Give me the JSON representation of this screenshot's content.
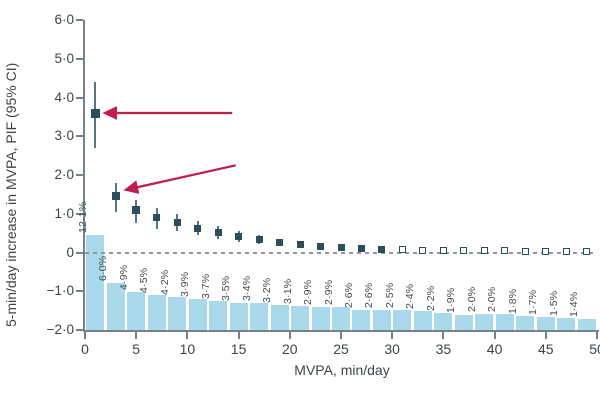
{
  "figure": {
    "y_axis": {
      "label": "5-min/day increase in MVPA, PIF (95% CI)",
      "min": -2,
      "max": 6,
      "ticks": [
        6,
        5,
        4,
        3,
        2,
        1,
        0,
        -1,
        -2
      ],
      "tick_labels": [
        "6·0",
        "5·0",
        "4·0",
        "3·0",
        "2·0",
        "1·0",
        "0",
        "−1·0",
        "−2·0"
      ]
    },
    "x_axis": {
      "label": "MVPA, min/day",
      "min": 0,
      "max": 50,
      "ticks": [
        0,
        5,
        10,
        15,
        20,
        25,
        30,
        35,
        40,
        45,
        50
      ]
    }
  },
  "chart_data": {
    "type": "bar",
    "subtype": "histogram-bars-with-point-estimates-and-95CI",
    "title": "",
    "grid": false,
    "legend": "none",
    "zero_reference_line": {
      "y": 0,
      "style": "dashed",
      "color": "#8f989c"
    },
    "bar_color": "#a9d9ea",
    "marker_color": "#2c4d5a",
    "ci_color": "#597683",
    "bar_baseline": -2,
    "bar_units_per_percent": 0.2025,
    "bins": [
      {
        "mvpa": 1,
        "bar_pct": 12.1,
        "bar_label": "12·1%",
        "pif": 3.6,
        "ci_low": 2.7,
        "ci_high": 4.4,
        "marker": "filled"
      },
      {
        "mvpa": 3,
        "bar_pct": 6.0,
        "bar_label": "6·0%",
        "pif": 1.45,
        "ci_low": 1.05,
        "ci_high": 1.8,
        "marker": "filled"
      },
      {
        "mvpa": 5,
        "bar_pct": 4.9,
        "bar_label": "4·9%",
        "pif": 1.1,
        "ci_low": 0.75,
        "ci_high": 1.36,
        "marker": "filled"
      },
      {
        "mvpa": 7,
        "bar_pct": 4.5,
        "bar_label": "4·5%",
        "pif": 0.9,
        "ci_low": 0.61,
        "ci_high": 1.15,
        "marker": "filled"
      },
      {
        "mvpa": 9,
        "bar_pct": 4.2,
        "bar_label": "4·2%",
        "pif": 0.77,
        "ci_low": 0.55,
        "ci_high": 1.0,
        "marker": "filled"
      },
      {
        "mvpa": 11,
        "bar_pct": 3.9,
        "bar_label": "3·9%",
        "pif": 0.62,
        "ci_low": 0.45,
        "ci_high": 0.82,
        "marker": "filled"
      },
      {
        "mvpa": 13,
        "bar_pct": 3.7,
        "bar_label": "3·7%",
        "pif": 0.51,
        "ci_low": 0.35,
        "ci_high": 0.68,
        "marker": "filled"
      },
      {
        "mvpa": 15,
        "bar_pct": 3.5,
        "bar_label": "3·5%",
        "pif": 0.41,
        "ci_low": 0.28,
        "ci_high": 0.55,
        "marker": "filled"
      },
      {
        "mvpa": 17,
        "bar_pct": 3.4,
        "bar_label": "3·4%",
        "pif": 0.34,
        "ci_low": 0.22,
        "ci_high": 0.46,
        "marker": "filled"
      },
      {
        "mvpa": 19,
        "bar_pct": 3.2,
        "bar_label": "3·2%",
        "pif": 0.26,
        "ci_low": 0.16,
        "ci_high": 0.36,
        "marker": "filled"
      },
      {
        "mvpa": 21,
        "bar_pct": 3.1,
        "bar_label": "3·1%",
        "pif": 0.2,
        "ci_low": 0.12,
        "ci_high": 0.29,
        "marker": "filled"
      },
      {
        "mvpa": 23,
        "bar_pct": 2.9,
        "bar_label": "2·9%",
        "pif": 0.15,
        "ci_low": 0.08,
        "ci_high": 0.22,
        "marker": "filled"
      },
      {
        "mvpa": 25,
        "bar_pct": 2.9,
        "bar_label": "2·9%",
        "pif": 0.12,
        "ci_low": 0.06,
        "ci_high": 0.18,
        "marker": "filled"
      },
      {
        "mvpa": 27,
        "bar_pct": 2.6,
        "bar_label": "2·6%",
        "pif": 0.1,
        "ci_low": 0.05,
        "ci_high": 0.15,
        "marker": "filled"
      },
      {
        "mvpa": 29,
        "bar_pct": 2.6,
        "bar_label": "2·6%",
        "pif": 0.08,
        "ci_low": 0.04,
        "ci_high": 0.13,
        "marker": "filled"
      },
      {
        "mvpa": 31,
        "bar_pct": 2.5,
        "bar_label": "2·5%",
        "pif": 0.07,
        "ci_low": 0.03,
        "ci_high": 0.11,
        "marker": "open"
      },
      {
        "mvpa": 33,
        "bar_pct": 2.4,
        "bar_label": "2·4%",
        "pif": 0.06,
        "ci_low": 0.02,
        "ci_high": 0.1,
        "marker": "open"
      },
      {
        "mvpa": 35,
        "bar_pct": 2.2,
        "bar_label": "2·2%",
        "pif": 0.05,
        "ci_low": 0.02,
        "ci_high": 0.09,
        "marker": "open"
      },
      {
        "mvpa": 37,
        "bar_pct": 1.9,
        "bar_label": "1·9%",
        "pif": 0.05,
        "ci_low": 0.02,
        "ci_high": 0.08,
        "marker": "open"
      },
      {
        "mvpa": 39,
        "bar_pct": 2.0,
        "bar_label": "2·0%",
        "pif": 0.04,
        "ci_low": 0.01,
        "ci_high": 0.07,
        "marker": "open"
      },
      {
        "mvpa": 41,
        "bar_pct": 2.0,
        "bar_label": "2·0%",
        "pif": 0.04,
        "ci_low": 0.01,
        "ci_high": 0.07,
        "marker": "open"
      },
      {
        "mvpa": 43,
        "bar_pct": 1.8,
        "bar_label": "1·8%",
        "pif": 0.03,
        "ci_low": 0.01,
        "ci_high": 0.06,
        "marker": "open"
      },
      {
        "mvpa": 45,
        "bar_pct": 1.7,
        "bar_label": "1·7%",
        "pif": 0.03,
        "ci_low": 0.0,
        "ci_high": 0.05,
        "marker": "open"
      },
      {
        "mvpa": 47,
        "bar_pct": 1.5,
        "bar_label": "1·5%",
        "pif": 0.02,
        "ci_low": 0.0,
        "ci_high": 0.05,
        "marker": "open"
      },
      {
        "mvpa": 49,
        "bar_pct": 1.4,
        "bar_label": "1·4%",
        "pif": 0.02,
        "ci_low": 0.0,
        "ci_high": 0.04,
        "marker": "open"
      }
    ],
    "annotations": [
      {
        "type": "arrow",
        "target_bin_mvpa": 1,
        "direction": "left",
        "color": "#c11d4d"
      },
      {
        "type": "arrow",
        "target_bin_mvpa": 3,
        "direction": "down-left",
        "color": "#c11d4d"
      }
    ]
  }
}
